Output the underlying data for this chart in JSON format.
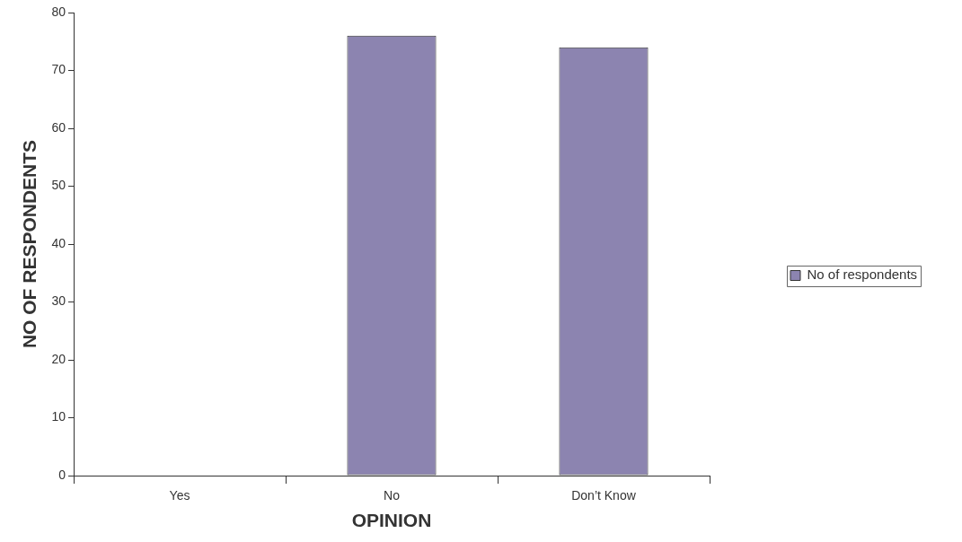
{
  "chart_data": {
    "type": "bar",
    "xlabel": "OPINION",
    "ylabel": "NO OF RESPONDENTS",
    "categories": [
      "Yes",
      "No",
      "Don’t Know"
    ],
    "series": [
      {
        "name": "No of respondents",
        "color": "#8c84b0",
        "values": [
          0,
          76,
          74
        ]
      }
    ],
    "ylim": [
      0,
      80
    ],
    "yticks": [
      0,
      10,
      20,
      30,
      40,
      50,
      60,
      70,
      80
    ],
    "grid": false,
    "legend": "right"
  }
}
